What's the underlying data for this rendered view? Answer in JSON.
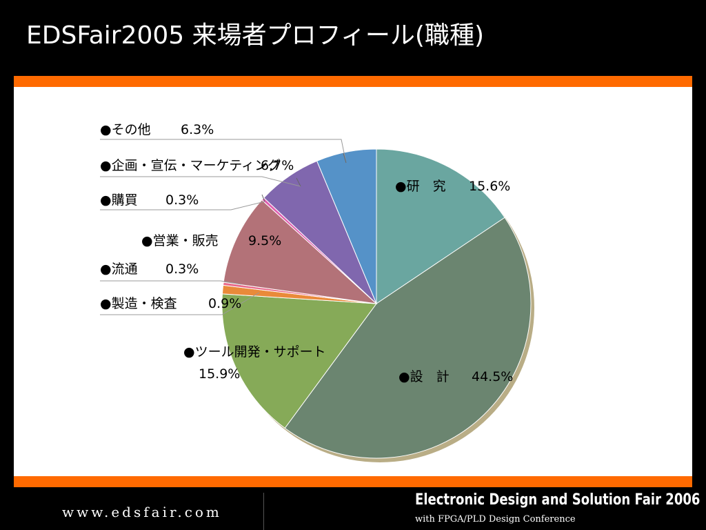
{
  "slide": {
    "title": "EDSFair2005 来場者プロフィール(職種)"
  },
  "footer": {
    "url": "www.edsfair.com",
    "fair_name": "Electronic Design and Solution Fair 2006",
    "fair_sub": "with FPGA/PLD Design Conference"
  },
  "colors": {
    "accent_bar": "#ff6a00",
    "background": "#000000",
    "panel": "#ffffff"
  },
  "chart_data": {
    "type": "pie",
    "title": "",
    "slices": [
      {
        "label": "●研　究",
        "value_text": "15.6%",
        "value": 15.6,
        "color": "#6aa6a0"
      },
      {
        "label": "●設　計",
        "value_text": "44.5%",
        "value": 44.5,
        "color": "#6b8570"
      },
      {
        "label": "●ツール開発・サポート",
        "value_text": "15.9%",
        "value": 15.9,
        "color": "#86aa58"
      },
      {
        "label": "●製造・検査",
        "value_text": "0.9%",
        "value": 0.9,
        "color": "#e98a3a"
      },
      {
        "label": "●流通",
        "value_text": "0.3%",
        "value": 0.3,
        "color": "#e86a8a"
      },
      {
        "label": "●営業・販売",
        "value_text": "9.5%",
        "value": 9.5,
        "color": "#b37278"
      },
      {
        "label": "●購買",
        "value_text": "0.3%",
        "value": 0.3,
        "color": "#e060b0"
      },
      {
        "label": "●企画・宣伝・マーケティング",
        "value_text": "6.7%",
        "value": 6.7,
        "color": "#8067ae"
      },
      {
        "label": "●その他",
        "value_text": "6.3%",
        "value": 6.3,
        "color": "#5592c8"
      }
    ]
  }
}
